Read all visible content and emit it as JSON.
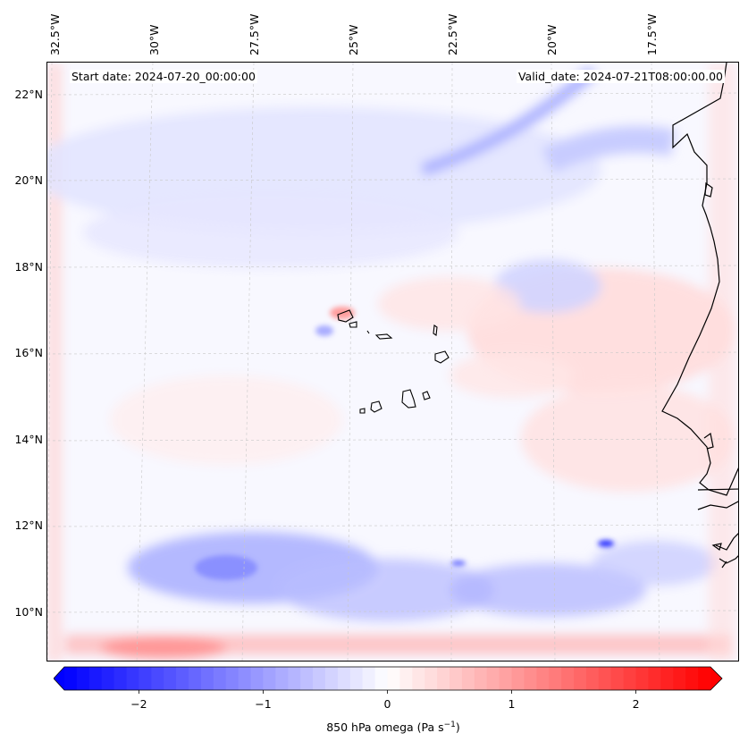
{
  "header": {
    "start_date": "Start date: 2024-07-20_00:00:00",
    "valid_date": "Valid_date: 2024-07-21T08:00:00.00"
  },
  "map": {
    "variable": "850 hPa omega",
    "region": "Eastern tropical Atlantic / Cabo Verde",
    "lon_ticks": [
      "32.5°W",
      "30°W",
      "27.5°W",
      "25°W",
      "22.5°W",
      "20°W",
      "17.5°W"
    ],
    "lat_ticks": [
      "22°N",
      "20°N",
      "18°N",
      "16°N",
      "14°N",
      "12°N",
      "10°N"
    ]
  },
  "colorbar": {
    "label": "850 hPa omega (Pa s",
    "label_sup": "−1",
    "label_end": ")",
    "ticks": [
      "−2",
      "−1",
      "0",
      "1",
      "2"
    ],
    "tick_values": [
      -2,
      -1,
      0,
      1,
      2
    ],
    "vmin": -2.6,
    "vmax": 2.6,
    "cmap": "bwr",
    "extend": "both"
  },
  "colors": {
    "negative": "#0000ff",
    "neutral": "#ffffff",
    "positive": "#ff0000",
    "coastline": "#000000"
  }
}
